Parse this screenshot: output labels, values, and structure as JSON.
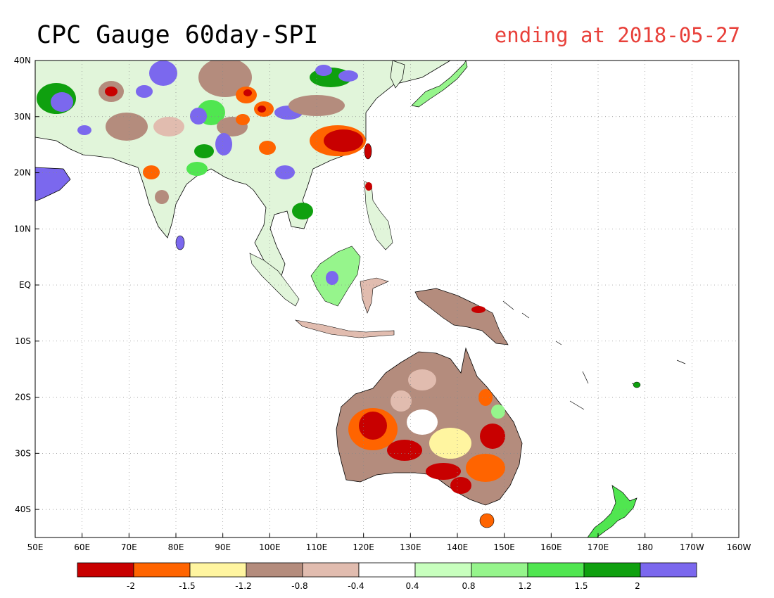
{
  "header": {
    "title": "CPC Gauge 60day-SPI",
    "subtitle": "ending at 2018-05-27",
    "subtitle_color": "#e8403a"
  },
  "map": {
    "lon_range": [
      50,
      200
    ],
    "lat_range": [
      -45,
      40
    ],
    "lon_ticks": [
      {
        "value": 50,
        "label": "50E"
      },
      {
        "value": 60,
        "label": "60E"
      },
      {
        "value": 70,
        "label": "70E"
      },
      {
        "value": 80,
        "label": "80E"
      },
      {
        "value": 90,
        "label": "90E"
      },
      {
        "value": 100,
        "label": "100E"
      },
      {
        "value": 110,
        "label": "110E"
      },
      {
        "value": 120,
        "label": "120E"
      },
      {
        "value": 130,
        "label": "130E"
      },
      {
        "value": 140,
        "label": "140E"
      },
      {
        "value": 150,
        "label": "150E"
      },
      {
        "value": 160,
        "label": "160E"
      },
      {
        "value": 170,
        "label": "170E"
      },
      {
        "value": 180,
        "label": "180"
      },
      {
        "value": 190,
        "label": "170W"
      },
      {
        "value": 200,
        "label": "160W"
      }
    ],
    "lat_ticks": [
      {
        "value": 40,
        "label": "40N"
      },
      {
        "value": 30,
        "label": "30N"
      },
      {
        "value": 20,
        "label": "20N"
      },
      {
        "value": 10,
        "label": "10N"
      },
      {
        "value": 0,
        "label": "EQ"
      },
      {
        "value": -10,
        "label": "10S"
      },
      {
        "value": -20,
        "label": "20S"
      },
      {
        "value": -30,
        "label": "30S"
      },
      {
        "value": -40,
        "label": "40S"
      }
    ],
    "grid": "dotted"
  },
  "legend": {
    "colors": [
      "#c80000",
      "#ff6400",
      "#fff5a0",
      "#b48c7d",
      "#e1bcaf",
      "#ffffff",
      "#c8ffbe",
      "#96f58c",
      "#50e650",
      "#0fa00f",
      "#7b68ee"
    ],
    "labels": [
      "-2",
      "-1.5",
      "-1.2",
      "-0.8",
      "-0.4",
      "0.4",
      "0.8",
      "1.2",
      "1.5",
      "2"
    ]
  }
}
